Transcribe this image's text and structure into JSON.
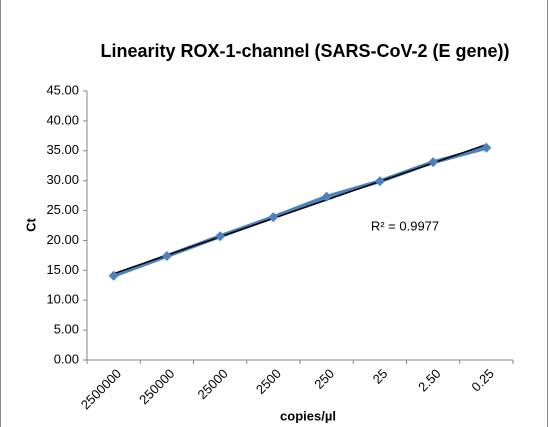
{
  "chart_data": {
    "type": "line",
    "title": "Linearity ROX-1-channel (SARS-CoV-2 (E gene))",
    "x_label": "copies/µl",
    "y_label": "Ct",
    "annotation": "R² = 0.9977",
    "categories": [
      "2500000",
      "250000",
      "25000",
      "2500",
      "250",
      "25",
      "2.50",
      "0.25"
    ],
    "series": [
      {
        "name": "Ct",
        "color": "#4f81bd",
        "values": [
          14.1,
          17.4,
          20.7,
          23.9,
          27.3,
          29.9,
          33.1,
          35.5
        ]
      }
    ],
    "trendline": "linear",
    "ylim": [
      0,
      45
    ],
    "yticks": [
      {
        "value": 0,
        "label": "0.00"
      },
      {
        "value": 5,
        "label": "5.00"
      },
      {
        "value": 10,
        "label": "10.00"
      },
      {
        "value": 15,
        "label": "15.00"
      },
      {
        "value": 20,
        "label": "20.00"
      },
      {
        "value": 25,
        "label": "25.00"
      },
      {
        "value": 30,
        "label": "30.00"
      },
      {
        "value": 35,
        "label": "35.00"
      },
      {
        "value": 40,
        "label": "40.00"
      },
      {
        "value": 45,
        "label": "45.00"
      }
    ],
    "grid": false
  }
}
